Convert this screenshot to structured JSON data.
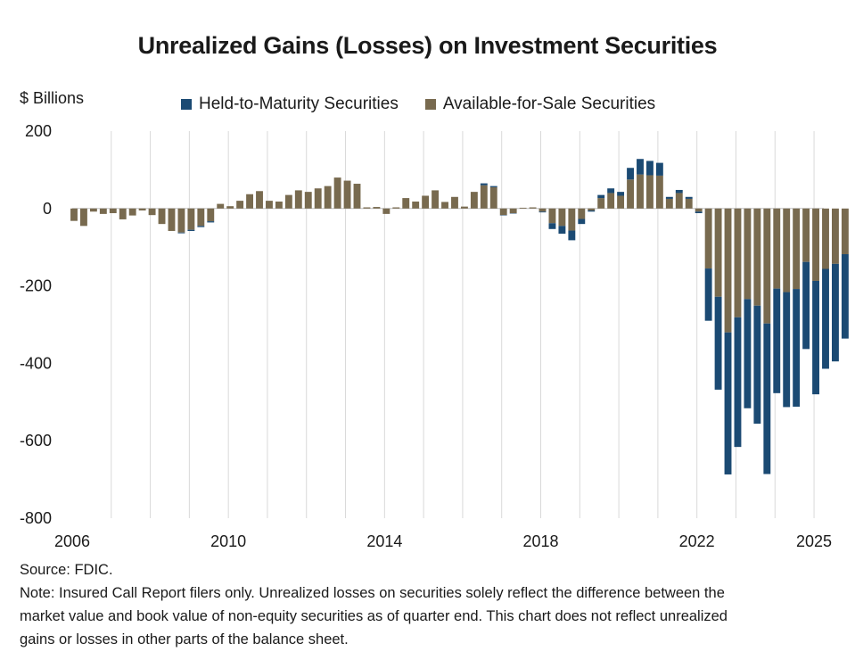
{
  "chart_data": {
    "type": "bar",
    "stacked": true,
    "title": "Unrealized Gains (Losses) on Investment Securities",
    "yunit": "$ Billions",
    "ylim": [
      -800,
      200
    ],
    "yticks": [
      200,
      0,
      -200,
      -400,
      -600,
      -800
    ],
    "xlim": [
      2006,
      2025.25
    ],
    "xticks": [
      2006,
      2010,
      2014,
      2018,
      2022,
      2025
    ],
    "grid": "vertical",
    "legend": "top",
    "series": [
      {
        "name": "Held-to-Maturity Securities",
        "color": "#1b4a73"
      },
      {
        "name": "Available-for-Sale Securities",
        "color": "#786a4f"
      }
    ],
    "data": [
      {
        "x": 2006.0,
        "hold": 0,
        "afs": -32
      },
      {
        "x": 2006.25,
        "hold": 0,
        "afs": -45
      },
      {
        "x": 2006.5,
        "hold": 0,
        "afs": -8
      },
      {
        "x": 2006.75,
        "hold": 0,
        "afs": -14
      },
      {
        "x": 2007.0,
        "hold": 0,
        "afs": -12
      },
      {
        "x": 2007.25,
        "hold": 0,
        "afs": -28
      },
      {
        "x": 2007.5,
        "hold": 0,
        "afs": -18
      },
      {
        "x": 2007.75,
        "hold": 0,
        "afs": -5
      },
      {
        "x": 2008.0,
        "hold": 0,
        "afs": -17
      },
      {
        "x": 2008.25,
        "hold": 0,
        "afs": -40
      },
      {
        "x": 2008.5,
        "hold": 0,
        "afs": -58
      },
      {
        "x": 2008.75,
        "hold": -2,
        "afs": -62
      },
      {
        "x": 2009.0,
        "hold": -3,
        "afs": -55
      },
      {
        "x": 2009.25,
        "hold": -3,
        "afs": -45
      },
      {
        "x": 2009.5,
        "hold": -3,
        "afs": -33
      },
      {
        "x": 2009.75,
        "hold": 0,
        "afs": 12
      },
      {
        "x": 2010.0,
        "hold": 0,
        "afs": 6
      },
      {
        "x": 2010.25,
        "hold": 0,
        "afs": 20
      },
      {
        "x": 2010.5,
        "hold": 0,
        "afs": 37
      },
      {
        "x": 2010.75,
        "hold": 0,
        "afs": 45
      },
      {
        "x": 2011.0,
        "hold": 0,
        "afs": 20
      },
      {
        "x": 2011.25,
        "hold": 0,
        "afs": 18
      },
      {
        "x": 2011.5,
        "hold": 0,
        "afs": 35
      },
      {
        "x": 2011.75,
        "hold": 0,
        "afs": 47
      },
      {
        "x": 2012.0,
        "hold": 0,
        "afs": 43
      },
      {
        "x": 2012.25,
        "hold": 0,
        "afs": 52
      },
      {
        "x": 2012.5,
        "hold": 0,
        "afs": 58
      },
      {
        "x": 2012.75,
        "hold": 0,
        "afs": 80
      },
      {
        "x": 2013.0,
        "hold": 0,
        "afs": 72
      },
      {
        "x": 2013.25,
        "hold": 0,
        "afs": 64
      },
      {
        "x": 2013.5,
        "hold": 0,
        "afs": 3
      },
      {
        "x": 2013.75,
        "hold": 0,
        "afs": 4
      },
      {
        "x": 2014.0,
        "hold": 0,
        "afs": -14
      },
      {
        "x": 2014.25,
        "hold": 0,
        "afs": 3
      },
      {
        "x": 2014.5,
        "hold": 0,
        "afs": 27
      },
      {
        "x": 2014.75,
        "hold": 0,
        "afs": 18
      },
      {
        "x": 2015.0,
        "hold": 0,
        "afs": 33
      },
      {
        "x": 2015.25,
        "hold": 0,
        "afs": 47
      },
      {
        "x": 2015.5,
        "hold": 0,
        "afs": 17
      },
      {
        "x": 2015.75,
        "hold": 0,
        "afs": 30
      },
      {
        "x": 2016.0,
        "hold": 0,
        "afs": 5
      },
      {
        "x": 2016.25,
        "hold": 0,
        "afs": 43
      },
      {
        "x": 2016.5,
        "hold": 5,
        "afs": 60
      },
      {
        "x": 2016.75,
        "hold": 3,
        "afs": 55
      },
      {
        "x": 2017.0,
        "hold": -1,
        "afs": -17
      },
      {
        "x": 2017.25,
        "hold": -1,
        "afs": -12
      },
      {
        "x": 2017.5,
        "hold": 0,
        "afs": 2
      },
      {
        "x": 2017.75,
        "hold": 0,
        "afs": 3
      },
      {
        "x": 2018.0,
        "hold": -2,
        "afs": -8
      },
      {
        "x": 2018.25,
        "hold": -15,
        "afs": -38
      },
      {
        "x": 2018.5,
        "hold": -20,
        "afs": -45
      },
      {
        "x": 2018.75,
        "hold": -25,
        "afs": -57
      },
      {
        "x": 2019.0,
        "hold": -13,
        "afs": -27
      },
      {
        "x": 2019.25,
        "hold": -3,
        "afs": -5
      },
      {
        "x": 2019.5,
        "hold": 8,
        "afs": 27
      },
      {
        "x": 2019.75,
        "hold": 12,
        "afs": 40
      },
      {
        "x": 2020.0,
        "hold": 10,
        "afs": 33
      },
      {
        "x": 2020.25,
        "hold": 30,
        "afs": 75
      },
      {
        "x": 2020.5,
        "hold": 40,
        "afs": 88
      },
      {
        "x": 2020.75,
        "hold": 37,
        "afs": 86
      },
      {
        "x": 2021.0,
        "hold": 33,
        "afs": 85
      },
      {
        "x": 2021.25,
        "hold": 5,
        "afs": 25
      },
      {
        "x": 2021.5,
        "hold": 8,
        "afs": 40
      },
      {
        "x": 2021.75,
        "hold": 5,
        "afs": 25
      },
      {
        "x": 2022.0,
        "hold": -4,
        "afs": -8
      },
      {
        "x": 2022.25,
        "hold": -135,
        "afs": -155
      },
      {
        "x": 2022.5,
        "hold": -240,
        "afs": -228
      },
      {
        "x": 2022.75,
        "hold": -367,
        "afs": -320
      },
      {
        "x": 2023.0,
        "hold": -335,
        "afs": -281
      },
      {
        "x": 2023.25,
        "hold": -282,
        "afs": -234
      },
      {
        "x": 2023.5,
        "hold": -305,
        "afs": -251
      },
      {
        "x": 2023.75,
        "hold": -389,
        "afs": -297
      },
      {
        "x": 2024.0,
        "hold": -270,
        "afs": -207
      },
      {
        "x": 2024.25,
        "hold": -297,
        "afs": -216
      },
      {
        "x": 2024.5,
        "hold": -304,
        "afs": -208
      },
      {
        "x": 2024.75,
        "hold": -225,
        "afs": -138
      },
      {
        "x": 2025.0,
        "hold": -293,
        "afs": -187
      },
      {
        "x": 2025.25,
        "hold": -258,
        "afs": -156
      },
      {
        "x": 2025.5,
        "hold": -252,
        "afs": -143
      },
      {
        "x": 2025.75,
        "hold": -218,
        "afs": -118
      }
    ]
  },
  "footer": {
    "source": "Source: FDIC.",
    "note_line1": "Note: Insured Call Report filers only. Unrealized losses on securities solely reflect the difference between the",
    "note_line2": "market value and book value of non-equity securities as of quarter end. This chart does not reflect unrealized",
    "note_line3": "gains or losses in other parts of the balance sheet."
  }
}
